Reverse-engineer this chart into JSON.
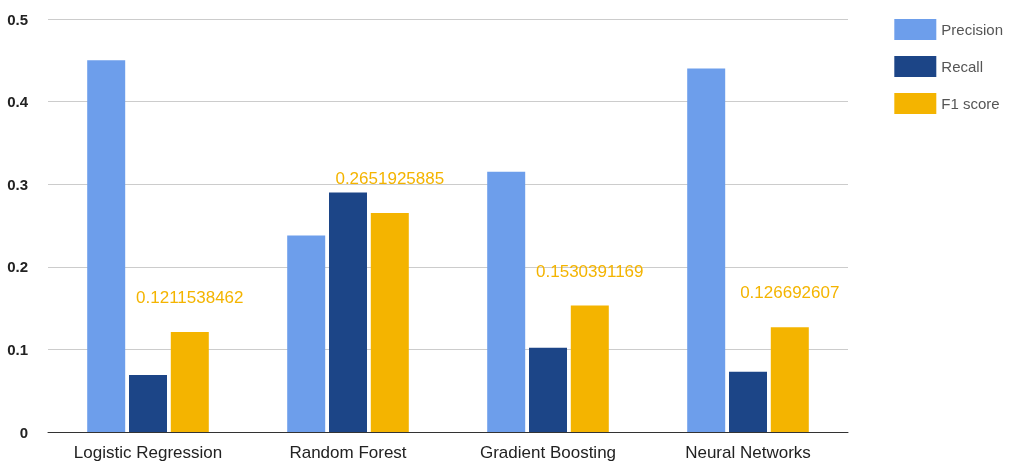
{
  "chart_data": {
    "type": "bar",
    "categories": [
      "Logistic Regression",
      "Random Forest",
      "Gradient Boosting",
      "Neural Networks"
    ],
    "series": [
      {
        "name": "Precision",
        "color": "#6d9eeb",
        "values": [
          0.45,
          0.238,
          0.315,
          0.44
        ]
      },
      {
        "name": "Recall",
        "color": "#1c4587",
        "values": [
          0.069,
          0.29,
          0.102,
          0.073
        ]
      },
      {
        "name": "F1 score",
        "color": "#f4b400",
        "values": [
          0.1211538462,
          0.2651925885,
          0.1530391169,
          0.126692607
        ],
        "value_labels": [
          "0.1211538462",
          "0.2651925885",
          "0.1530391169",
          "0.126692607"
        ]
      }
    ],
    "ylim": [
      0,
      0.5
    ],
    "yticks": [
      0,
      0.1,
      0.2,
      0.3,
      0.4,
      0.5
    ],
    "grid": "y",
    "legend": "top right"
  }
}
